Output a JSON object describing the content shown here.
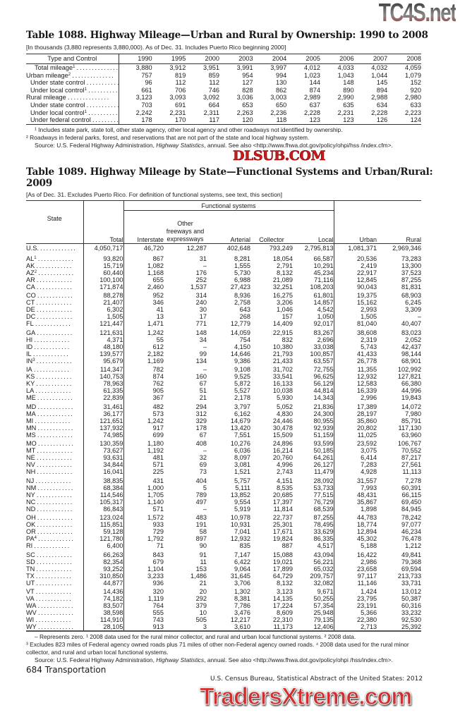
{
  "watermarks": {
    "top": "TC4S.net",
    "middle": "DLSUB.COM",
    "bottom": "TradersXtreme.com"
  },
  "table1088": {
    "title": "Table 1088. Highway Mileage—Urban and Rural by Ownership: 1990 to 2008",
    "headnote": "[In thousands (3,880 represents 3,880,000). As of Dec. 31. Includes Puerto Rico beginning 2000]",
    "stub_header": "Type and Control",
    "years": [
      "1990",
      "1995",
      "2000",
      "2003",
      "2004",
      "2005",
      "2006",
      "2007",
      "2008"
    ],
    "rows": [
      {
        "label": "Total mileage",
        "sup": "1",
        "bold": true,
        "indent": false,
        "values": [
          "3,880",
          "3,912",
          "3,951",
          "3,991",
          "3,997",
          "4,012",
          "4,033",
          "4,032",
          "4,059"
        ]
      },
      {
        "label": "Urban mileage",
        "sup": "2",
        "bold": false,
        "indent": false,
        "values": [
          "757",
          "819",
          "859",
          "954",
          "994",
          "1,023",
          "1,043",
          "1,044",
          "1,079"
        ]
      },
      {
        "label": "Under state control",
        "sup": "",
        "bold": false,
        "indent": true,
        "values": [
          "96",
          "112",
          "112",
          "127",
          "130",
          "144",
          "148",
          "145",
          "152"
        ]
      },
      {
        "label": "Under local control",
        "sup": "1",
        "bold": false,
        "indent": true,
        "values": [
          "661",
          "706",
          "746",
          "828",
          "862",
          "874",
          "890",
          "894",
          "920"
        ]
      },
      {
        "label": "Rural mileage",
        "sup": "",
        "bold": false,
        "indent": false,
        "values": [
          "3,123",
          "3,093",
          "3,092",
          "3,036",
          "3,003",
          "2,989",
          "2,990",
          "2,988",
          "2,980"
        ]
      },
      {
        "label": "Under state control",
        "sup": "",
        "bold": false,
        "indent": true,
        "values": [
          "703",
          "691",
          "664",
          "653",
          "650",
          "637",
          "635",
          "634",
          "633"
        ]
      },
      {
        "label": "Under local control",
        "sup": "1",
        "bold": false,
        "indent": true,
        "values": [
          "2,242",
          "2,231",
          "2,311",
          "2,263",
          "2,236",
          "2,228",
          "2,231",
          "2,228",
          "2,223"
        ]
      },
      {
        "label": "Under federal control",
        "sup": "",
        "bold": false,
        "indent": true,
        "values": [
          "178",
          "170",
          "117",
          "120",
          "118",
          "123",
          "123",
          "126",
          "124"
        ]
      }
    ],
    "footnote1": "¹ Includes state park, state toll, other state agency, other local agency and other roadways not identified by ownership.",
    "footnote2": "² Roadways in federal parks, forest, and reservations that are not part of the state and local highway system.",
    "source_prefix": "Source: U.S. Federal Highway Administration, ",
    "source_italic": "Highway Statistics",
    "source_suffix": ", annual. See also <http://www.fhwa.dot.gov/policy/ohpi/hss /index.cfm>."
  },
  "table1089": {
    "title_line1": "Table 1089. Highway Mileage by State—Functional Systems and Urban/Rural:",
    "title_line2": "2009",
    "headnote": "[As of Dec. 31. Excludes Puerto Rico. For definition of functional systems, see text, this section]",
    "headers": {
      "state": "State",
      "total": "Total",
      "functional": "Functional systems",
      "interstate": "Interstate",
      "other_line1": "Other",
      "other_line2": "freeways and",
      "other_line3": "expressways",
      "arterial": "Arterial",
      "collector": "Collector",
      "local": "Local",
      "urban": "Urban",
      "rural": "Rural"
    },
    "us_row": {
      "label": "U.S.",
      "values": [
        "4,050,717",
        "46,720",
        "12,287",
        "402,648",
        "793,249",
        "2,795,813",
        "1,081,371",
        "2,969,346"
      ]
    },
    "groups": [
      [
        [
          "AL",
          "1",
          [
            "93,820",
            "867",
            "31",
            "8,281",
            "18,054",
            "66,587",
            "20,536",
            "73,283"
          ]
        ],
        [
          "AK",
          "",
          [
            "15,719",
            "1,082",
            "–",
            "1,555",
            "2,791",
            "10,291",
            "2,419",
            "13,300"
          ]
        ],
        [
          "AZ",
          "2",
          [
            "60,440",
            "1,168",
            "176",
            "5,730",
            "8,132",
            "45,234",
            "22,917",
            "37,523"
          ]
        ],
        [
          "AR",
          "",
          [
            "100,100",
            "655",
            "252",
            "6,988",
            "21,089",
            "71,116",
            "12,845",
            "87,255"
          ]
        ],
        [
          "CA",
          "",
          [
            "171,874",
            "2,460",
            "1,537",
            "27,423",
            "32,251",
            "108,203",
            "90,043",
            "81,831"
          ]
        ]
      ],
      [
        [
          "CO",
          "",
          [
            "88,278",
            "952",
            "314",
            "8,936",
            "16,275",
            "61,801",
            "19,375",
            "68,903"
          ]
        ],
        [
          "CT",
          "",
          [
            "21,407",
            "346",
            "240",
            "2,758",
            "3,206",
            "14,857",
            "15,162",
            "6,245"
          ]
        ],
        [
          "DE",
          "",
          [
            "6,302",
            "41",
            "30",
            "643",
            "1,046",
            "4,542",
            "2,993",
            "3,309"
          ]
        ],
        [
          "DC",
          "",
          [
            "1,505",
            "13",
            "17",
            "268",
            "157",
            "1,050",
            "1,505",
            "–"
          ]
        ],
        [
          "FL",
          "",
          [
            "121,447",
            "1,471",
            "771",
            "12,779",
            "14,409",
            "92,017",
            "81,040",
            "40,407"
          ]
        ]
      ],
      [
        [
          "GA",
          "",
          [
            "121,631",
            "1,242",
            "148",
            "14,059",
            "22,915",
            "83,267",
            "38,608",
            "83,023"
          ]
        ],
        [
          "HI",
          "",
          [
            "4,371",
            "55",
            "34",
            "754",
            "832",
            "2,696",
            "2,319",
            "2,052"
          ]
        ],
        [
          "ID",
          "",
          [
            "48,180",
            "612",
            "–",
            "4,150",
            "10,380",
            "33,038",
            "5,743",
            "42,437"
          ]
        ],
        [
          "IL",
          "",
          [
            "139,577",
            "2,182",
            "99",
            "14,646",
            "21,793",
            "100,857",
            "41,433",
            "98,144"
          ]
        ],
        [
          "IN",
          "3",
          [
            "95,679",
            "1,169",
            "134",
            "9,386",
            "21,433",
            "63,557",
            "26,778",
            "68,901"
          ]
        ]
      ],
      [
        [
          "IA",
          "",
          [
            "114,347",
            "782",
            "–",
            "9,108",
            "31,702",
            "72,755",
            "11,355",
            "102,992"
          ]
        ],
        [
          "KS",
          "",
          [
            "140,753",
            "874",
            "160",
            "9,525",
            "33,541",
            "96,625",
            "12,932",
            "127,821"
          ]
        ],
        [
          "KY",
          "",
          [
            "78,963",
            "762",
            "67",
            "5,872",
            "16,133",
            "56,129",
            "12,583",
            "66,380"
          ]
        ],
        [
          "LA",
          "",
          [
            "61,335",
            "905",
            "51",
            "5,527",
            "10,038",
            "44,814",
            "16,339",
            "44,996"
          ]
        ],
        [
          "ME",
          "",
          [
            "22,839",
            "367",
            "21",
            "2,178",
            "5,930",
            "14,343",
            "2,996",
            "19,843"
          ]
        ]
      ],
      [
        [
          "MD",
          "",
          [
            "31,461",
            "482",
            "294",
            "3,797",
            "5,052",
            "21,836",
            "17,389",
            "14,072"
          ]
        ],
        [
          "MA",
          "",
          [
            "36,177",
            "573",
            "312",
            "6,162",
            "4,830",
            "24,300",
            "28,197",
            "7,980"
          ]
        ],
        [
          "MI",
          "",
          [
            "121,651",
            "1,242",
            "329",
            "14,679",
            "24,446",
            "80,955",
            "35,860",
            "85,791"
          ]
        ],
        [
          "MN",
          "",
          [
            "137,932",
            "917",
            "178",
            "13,420",
            "30,478",
            "92,939",
            "20,802",
            "117,130"
          ]
        ],
        [
          "MS",
          "",
          [
            "74,985",
            "699",
            "67",
            "7,551",
            "15,509",
            "51,159",
            "11,025",
            "63,960"
          ]
        ]
      ],
      [
        [
          "MO",
          "",
          [
            "130,359",
            "1,180",
            "408",
            "10,276",
            "24,896",
            "93,599",
            "23,592",
            "106,767"
          ]
        ],
        [
          "MT",
          "",
          [
            "73,627",
            "1,192",
            "–",
            "6,036",
            "16,214",
            "50,185",
            "3,075",
            "70,552"
          ]
        ],
        [
          "NE",
          "",
          [
            "93,631",
            "481",
            "32",
            "8,097",
            "20,760",
            "64,261",
            "6,414",
            "87,217"
          ]
        ],
        [
          "NV",
          "",
          [
            "34,844",
            "571",
            "69",
            "3,081",
            "4,996",
            "26,127",
            "7,283",
            "27,561"
          ]
        ],
        [
          "NH",
          "",
          [
            "16,041",
            "225",
            "73",
            "1,521",
            "2,743",
            "11,479",
            "4,928",
            "11,113"
          ]
        ]
      ],
      [
        [
          "NJ",
          "",
          [
            "38,835",
            "431",
            "404",
            "5,757",
            "4,151",
            "28,092",
            "31,557",
            "7,278"
          ]
        ],
        [
          "NM",
          "",
          [
            "68,384",
            "1,000",
            "5",
            "5,111",
            "8,535",
            "53,733",
            "7,993",
            "60,391"
          ]
        ],
        [
          "NY",
          "",
          [
            "114,546",
            "1,705",
            "789",
            "13,852",
            "20,685",
            "77,515",
            "48,431",
            "66,115"
          ]
        ],
        [
          "NC",
          "",
          [
            "105,317",
            "1,140",
            "497",
            "9,554",
            "17,397",
            "76,729",
            "35,867",
            "69,450"
          ]
        ],
        [
          "ND",
          "",
          [
            "86,843",
            "571",
            "–",
            "5,919",
            "11,814",
            "68,539",
            "1,898",
            "84,945"
          ]
        ]
      ],
      [
        [
          "OH",
          "",
          [
            "123,024",
            "1,572",
            "483",
            "10,978",
            "22,737",
            "87,255",
            "44,783",
            "78,242"
          ]
        ],
        [
          "OK",
          "",
          [
            "115,851",
            "933",
            "191",
            "10,931",
            "25,301",
            "78,495",
            "18,774",
            "97,077"
          ]
        ],
        [
          "OR",
          "",
          [
            "59,128",
            "729",
            "58",
            "7,041",
            "17,671",
            "33,629",
            "12,894",
            "46,234"
          ]
        ],
        [
          "PA",
          "4",
          [
            "121,780",
            "1,792",
            "897",
            "12,932",
            "19,824",
            "86,335",
            "45,302",
            "76,478"
          ]
        ],
        [
          "RI",
          "",
          [
            "6,400",
            "71",
            "90",
            "835",
            "887",
            "4,517",
            "5,188",
            "1,212"
          ]
        ]
      ],
      [
        [
          "SC",
          "",
          [
            "66,263",
            "843",
            "91",
            "7,147",
            "15,088",
            "43,094",
            "16,422",
            "49,841"
          ]
        ],
        [
          "SD",
          "",
          [
            "82,354",
            "679",
            "11",
            "6,422",
            "19,021",
            "56,221",
            "2,986",
            "79,368"
          ]
        ],
        [
          "TN",
          "",
          [
            "93,252",
            "1,104",
            "153",
            "9,064",
            "17,899",
            "65,032",
            "23,658",
            "69,594"
          ]
        ],
        [
          "TX",
          "",
          [
            "310,850",
            "3,233",
            "1,486",
            "31,645",
            "64,729",
            "209,757",
            "97,117",
            "213,733"
          ]
        ],
        [
          "UT",
          "",
          [
            "44,877",
            "936",
            "21",
            "3,706",
            "8,132",
            "32,082",
            "11,146",
            "33,731"
          ]
        ]
      ],
      [
        [
          "VT",
          "",
          [
            "14,436",
            "320",
            "20",
            "1,302",
            "3,123",
            "9,671",
            "1,424",
            "13,012"
          ]
        ],
        [
          "VA",
          "",
          [
            "74,182",
            "1,119",
            "292",
            "8,381",
            "14,135",
            "50,255",
            "23,795",
            "50,387"
          ]
        ],
        [
          "WA",
          "",
          [
            "83,507",
            "764",
            "379",
            "7,786",
            "17,224",
            "57,354",
            "23,191",
            "60,316"
          ]
        ],
        [
          "WV",
          "",
          [
            "38,598",
            "555",
            "10",
            "3,476",
            "8,609",
            "25,948",
            "5,366",
            "33,232"
          ]
        ],
        [
          "WI",
          "",
          [
            "114,910",
            "743",
            "505",
            "12,217",
            "22,310",
            "79,135",
            "22,380",
            "92,530"
          ]
        ],
        [
          "WY",
          "",
          [
            "28,105",
            "913",
            "3",
            "3,610",
            "11,173",
            "12,406",
            "2,713",
            "25,392"
          ]
        ]
      ]
    ],
    "footnote_a": "– Represents zero. ¹ 2008 data used for the rural minor collector, and rural and urban local functional systems. ² 2008 data.",
    "footnote_b": "³ Excludes 823 miles of Federal agency owned roads plus 71 miles of other non-Federal agency owned roads. ⁴ 2008 data used for the rural minor collector, and rural and urban local functional systems.",
    "source_prefix": "Source: U.S. Federal Highway Administration, ",
    "source_italic": "Highway Statistics",
    "source_suffix": ", annual. See also <http://www.fhwa.dot.gov/policy/ohpi /hss/index.cfm>."
  },
  "footer": {
    "page": "684  Transportation",
    "credit": "U.S. Census Bureau, Statistical Abstract of the United States: 2012"
  }
}
